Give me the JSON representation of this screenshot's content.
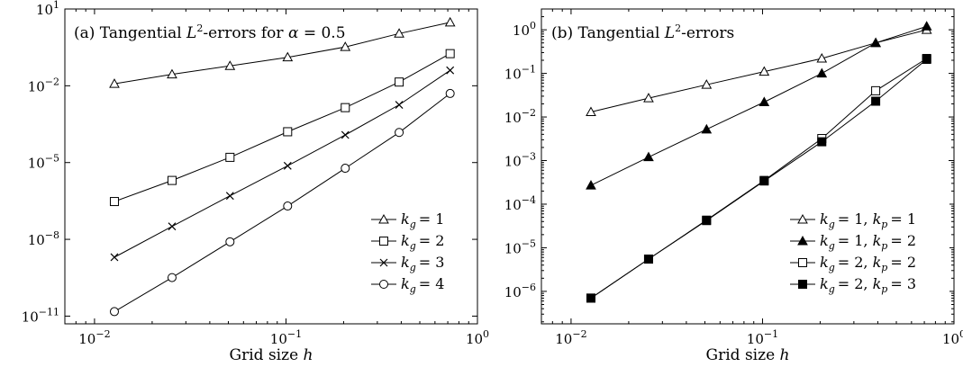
{
  "chart_data": [
    {
      "type": "line",
      "title": "(a) Tangential L²-errors for α = 0.5",
      "xlabel": "Grid size h",
      "ylabel": "",
      "xscale": "log",
      "yscale": "log",
      "xlim": [
        0.007,
        1.0
      ],
      "ylim": [
        5e-12,
        10
      ],
      "xticks": [
        {
          "value": 0.01,
          "base": "10",
          "exp": "−2"
        },
        {
          "value": 0.1,
          "base": "10",
          "exp": "−1"
        },
        {
          "value": 1.0,
          "base": "10",
          "exp": "0"
        }
      ],
      "yticks": [
        {
          "value": 1e-11,
          "base": "10",
          "exp": "−11"
        },
        {
          "value": 1e-08,
          "base": "10",
          "exp": "−8"
        },
        {
          "value": 1e-05,
          "base": "10",
          "exp": "−5"
        },
        {
          "value": 0.01,
          "base": "10",
          "exp": "−2"
        },
        {
          "value": 10,
          "base": "10",
          "exp": "1"
        }
      ],
      "grid": false,
      "legend_position": "bottom-right",
      "x": [
        0.0127,
        0.0254,
        0.051,
        0.102,
        0.204,
        0.39,
        0.72
      ],
      "series": [
        {
          "name": "k_g = 1",
          "marker": "triangle-open",
          "values": [
            0.012,
            0.028,
            0.06,
            0.13,
            0.33,
            1.1,
            3.0
          ]
        },
        {
          "name": "k_g = 2",
          "marker": "square-open",
          "values": [
            3e-07,
            2e-06,
            1.6e-05,
            0.00016,
            0.0014,
            0.014,
            0.18
          ]
        },
        {
          "name": "k_g = 3",
          "marker": "x",
          "values": [
            2e-09,
            3.2e-08,
            5e-07,
            7.5e-06,
            0.00012,
            0.0018,
            0.04
          ]
        },
        {
          "name": "k_g = 4",
          "marker": "circle-open",
          "values": [
            1.5e-11,
            3.2e-10,
            8e-09,
            2e-07,
            6e-06,
            0.00015,
            0.005
          ]
        }
      ],
      "legend": [
        {
          "sub_g": "g",
          "rest": "= 1"
        },
        {
          "sub_g": "g",
          "rest": "= 2"
        },
        {
          "sub_g": "g",
          "rest": "= 3"
        },
        {
          "sub_g": "g",
          "rest": "= 4"
        }
      ]
    },
    {
      "type": "line",
      "title": "(b) Tangential L²-errors",
      "xlabel": "Grid size h",
      "ylabel": "",
      "xscale": "log",
      "yscale": "log",
      "xlim": [
        0.007,
        1.0
      ],
      "ylim": [
        1.8e-07,
        3.0
      ],
      "xticks": [
        {
          "value": 0.01,
          "base": "10",
          "exp": "−2"
        },
        {
          "value": 0.1,
          "base": "10",
          "exp": "−1"
        },
        {
          "value": 1.0,
          "base": "10",
          "exp": "0"
        }
      ],
      "yticks": [
        {
          "value": 1e-06,
          "base": "10",
          "exp": "−6"
        },
        {
          "value": 1e-05,
          "base": "10",
          "exp": "−5"
        },
        {
          "value": 0.0001,
          "base": "10",
          "exp": "−4"
        },
        {
          "value": 0.001,
          "base": "10",
          "exp": "−3"
        },
        {
          "value": 0.01,
          "base": "10",
          "exp": "−2"
        },
        {
          "value": 0.1,
          "base": "10",
          "exp": "−1"
        },
        {
          "value": 1.0,
          "base": "10",
          "exp": "0"
        }
      ],
      "grid": false,
      "legend_position": "bottom-right",
      "x": [
        0.0127,
        0.0254,
        0.051,
        0.102,
        0.204,
        0.39,
        0.72
      ],
      "series": [
        {
          "name": "k_g = 1, k_p = 1",
          "marker": "triangle-open",
          "values": [
            0.013,
            0.027,
            0.055,
            0.11,
            0.22,
            0.5,
            1.0
          ]
        },
        {
          "name": "k_g = 1, k_p = 2",
          "marker": "triangle-filled",
          "values": [
            0.00027,
            0.0012,
            0.0052,
            0.022,
            0.1,
            0.5,
            1.2
          ]
        },
        {
          "name": "k_g = 2, k_p = 2",
          "marker": "square-open",
          "values": [
            7e-07,
            5.5e-06,
            4.3e-05,
            0.00035,
            0.0032,
            0.04,
            0.22
          ]
        },
        {
          "name": "k_g = 2, k_p = 3",
          "marker": "square-filled",
          "values": [
            7e-07,
            5.5e-06,
            4.2e-05,
            0.00034,
            0.0027,
            0.023,
            0.21
          ]
        }
      ],
      "legend": [
        {
          "sub_g": "g",
          "rest1": "= 1, ",
          "sub_p": "p",
          "rest2": "= 1"
        },
        {
          "sub_g": "g",
          "rest1": "= 1, ",
          "sub_p": "p",
          "rest2": "= 2"
        },
        {
          "sub_g": "g",
          "rest1": "= 2, ",
          "sub_p": "p",
          "rest2": "= 2"
        },
        {
          "sub_g": "g",
          "rest1": "= 2, ",
          "sub_p": "p",
          "rest2": "= 3"
        }
      ]
    }
  ],
  "panels": {
    "a": {
      "title_prefix": "(a) Tangential ",
      "title_L": "L",
      "title_sup": "2",
      "title_suffix": "-errors for ",
      "title_alpha": "α",
      "title_value": " = 0.5",
      "xlabel_text": "Grid size ",
      "xlabel_var": "h"
    },
    "b": {
      "title_prefix": "(b) Tangential ",
      "title_L": "L",
      "title_sup": "2",
      "title_suffix": "-errors",
      "xlabel_text": "Grid size ",
      "xlabel_var": "h"
    },
    "legend_k": "k"
  }
}
